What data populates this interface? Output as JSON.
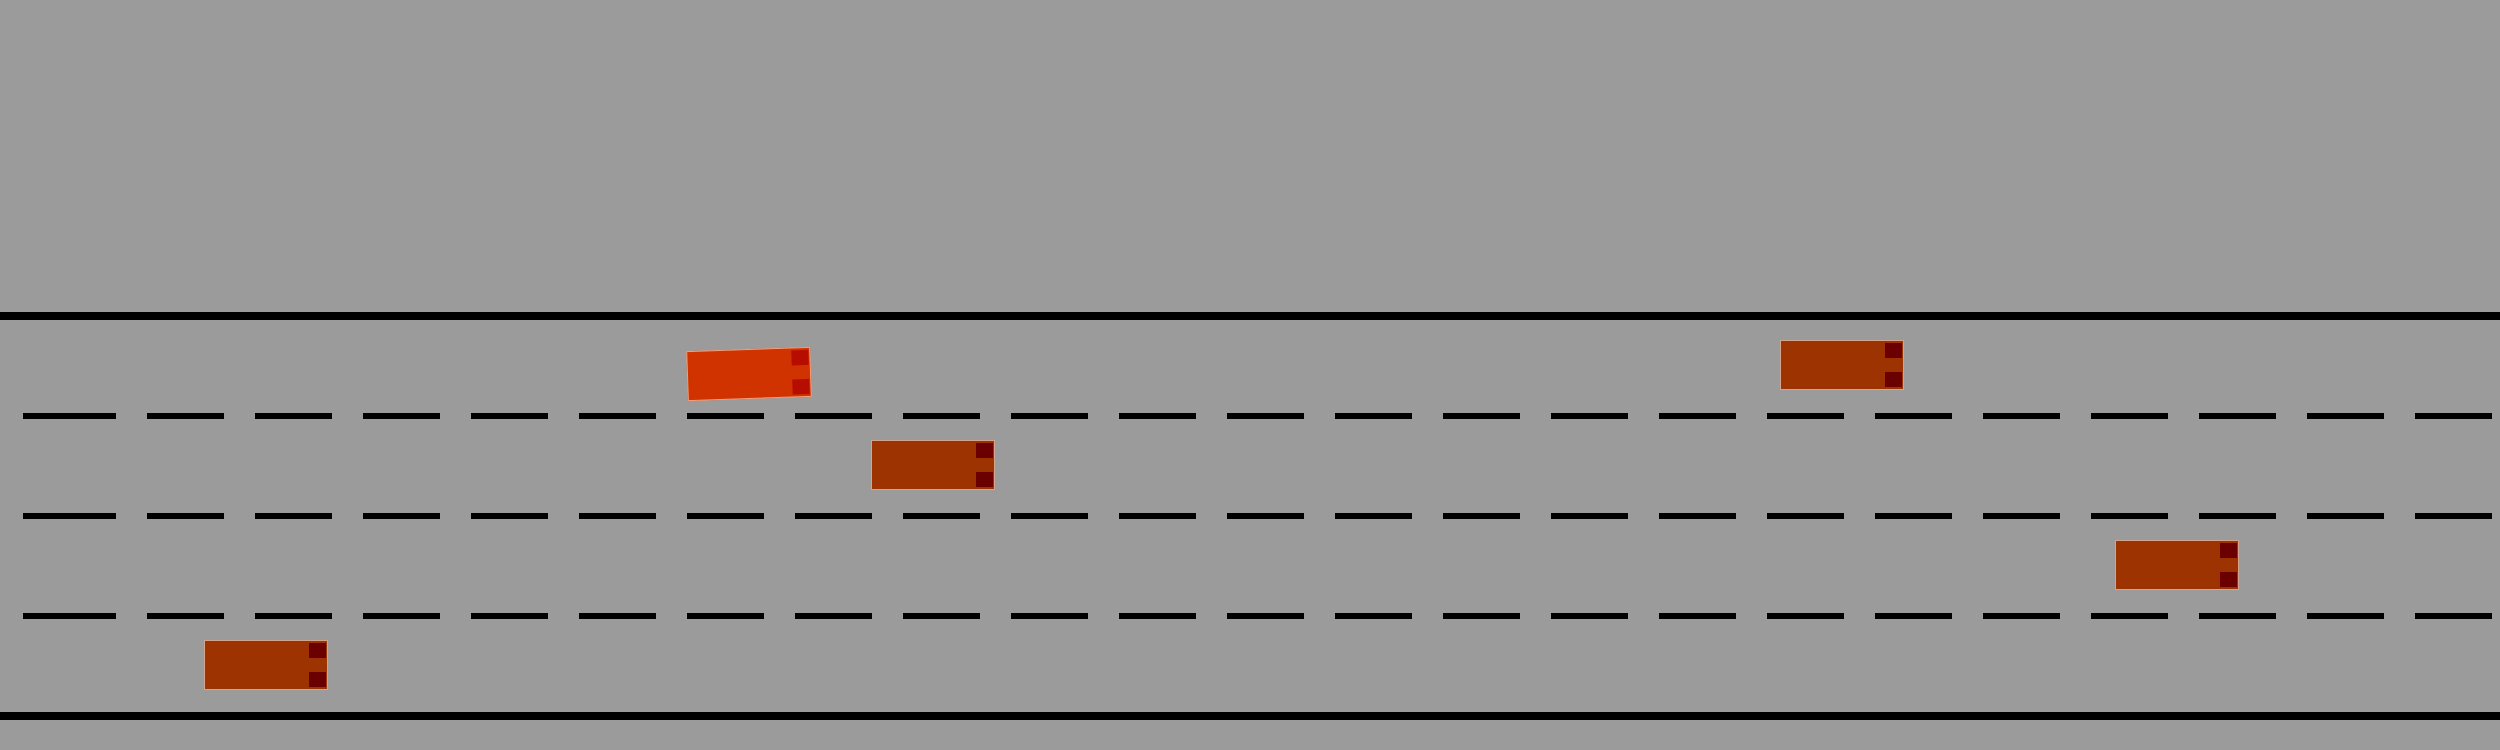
{
  "colors": {
    "background": "#9b9b9b",
    "road_edge": "#000000",
    "lane_marking": "#000000",
    "ego_vehicle": "#d03300",
    "ego_outline": "#f2a17e",
    "other_vehicle": "#9c3300",
    "other_outline": "#d2a590",
    "ego_headlight": "#b60d00",
    "other_headlight": "#6a0000"
  },
  "scene": {
    "road_edges": 2,
    "lane_dividers": 3,
    "lane_count": 4
  },
  "vehicles": [
    {
      "id": "ego",
      "role": "ego",
      "lane": 1,
      "heading": "right",
      "heading_deg": -2
    },
    {
      "id": "car-2",
      "role": "other",
      "lane": 1,
      "heading": "right",
      "heading_deg": 0
    },
    {
      "id": "car-3",
      "role": "other",
      "lane": 2,
      "heading": "right",
      "heading_deg": 0
    },
    {
      "id": "car-4",
      "role": "other",
      "lane": 3,
      "heading": "right",
      "heading_deg": 0
    },
    {
      "id": "car-5",
      "role": "other",
      "lane": 4,
      "heading": "right",
      "heading_deg": 0
    }
  ]
}
